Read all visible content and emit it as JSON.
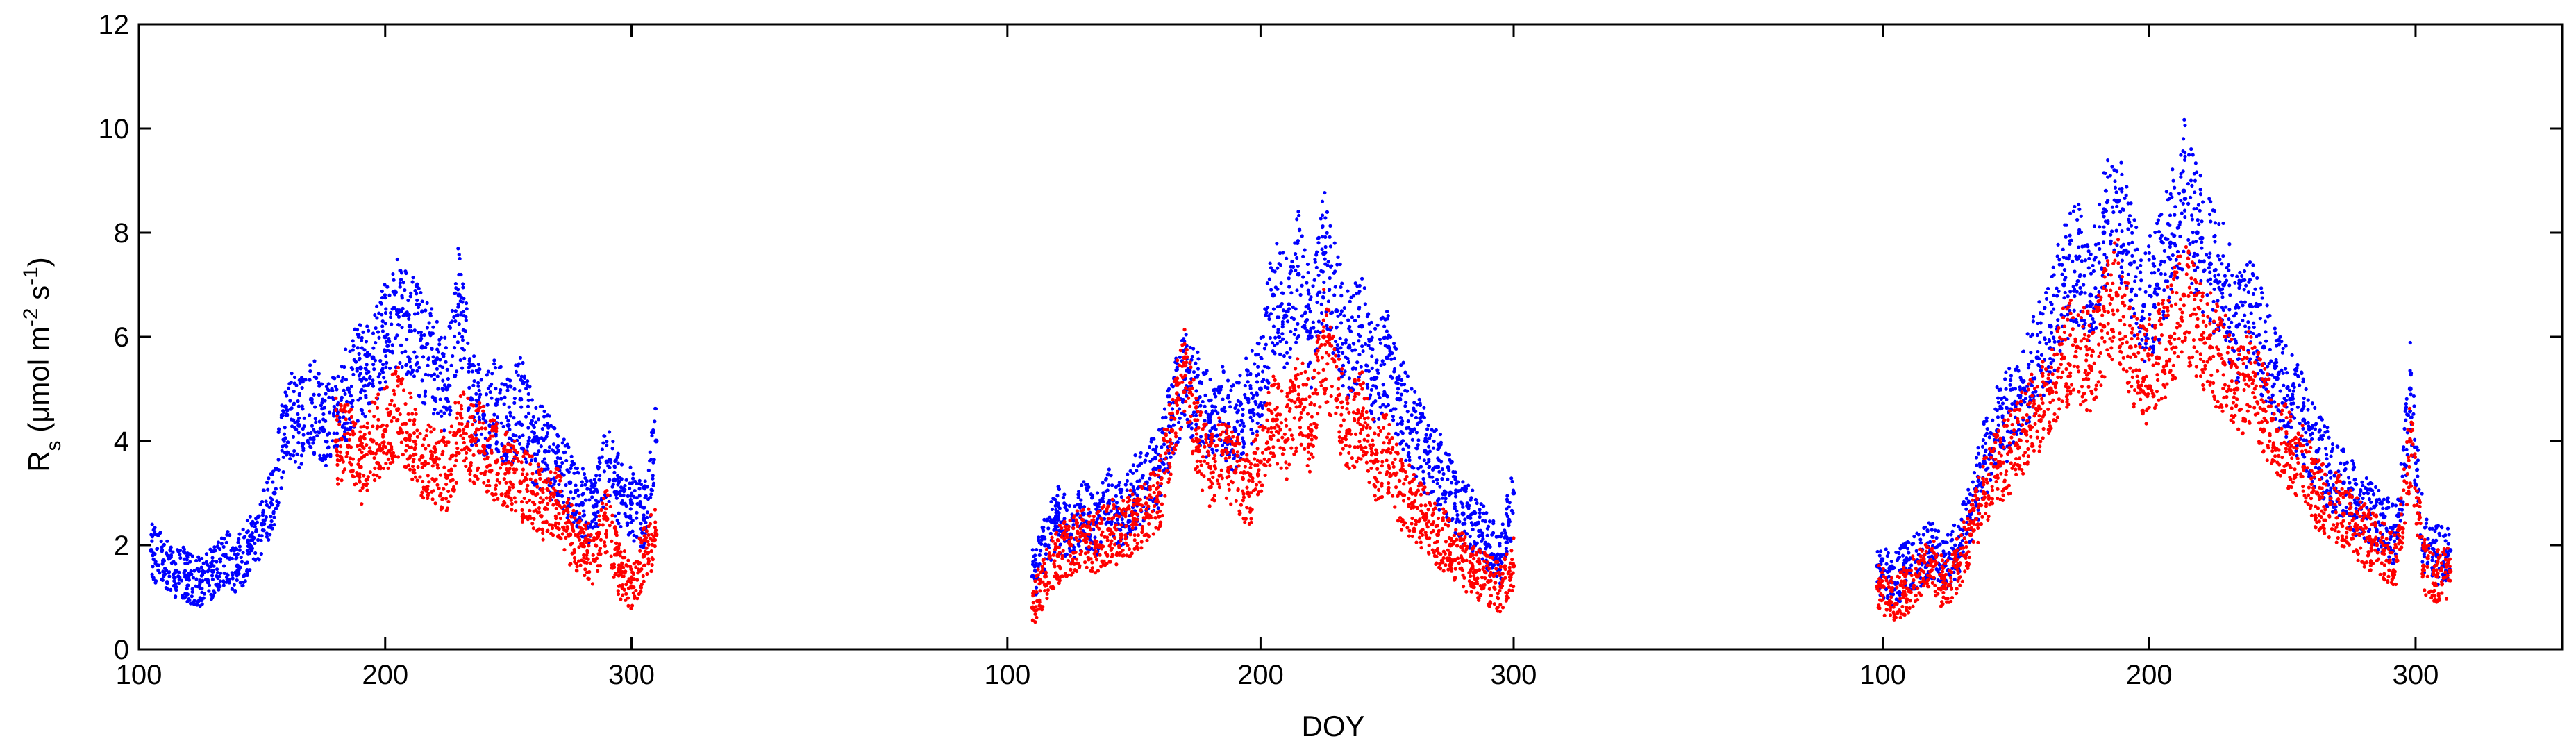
{
  "chart_data": {
    "type": "scatter",
    "xlabel": "DOY",
    "ylabel_parts": {
      "base": "R",
      "sub": "s",
      "unit_open": " (μmol m",
      "sup1": "-2",
      "mid": " s",
      "sup2": "-1",
      "unit_close": ")"
    },
    "ylim": [
      0,
      12
    ],
    "yticks": [
      0,
      2,
      4,
      6,
      8,
      10,
      12
    ],
    "grid": false,
    "legend": "none",
    "colors": {
      "series_1": "#0000ff",
      "series_2": "#ff0000"
    },
    "panels": [
      {
        "xlim": [
          100,
          310
        ],
        "xticks": [
          100,
          200,
          300
        ],
        "series": [
          {
            "color": "#0000ff",
            "x": [
              105,
              110,
              115,
              120,
              125,
              130,
              135,
              140,
              145,
              150,
              155,
              160,
              165,
              170,
              175,
              180,
              185,
              190,
              195,
              200,
              205,
              210,
              215,
              220,
              225,
              230,
              235,
              240,
              245,
              250,
              255,
              260,
              265,
              270,
              275,
              280,
              285,
              290,
              295,
              300,
              305,
              310
            ],
            "y": [
              1.9,
              1.7,
              1.5,
              1.4,
              1.3,
              1.5,
              1.8,
              1.6,
              2.0,
              2.4,
              3.0,
              4.5,
              4.3,
              4.8,
              4.2,
              4.6,
              5.0,
              5.4,
              5.6,
              6.0,
              6.5,
              6.2,
              5.8,
              5.5,
              5.0,
              6.8,
              4.8,
              4.5,
              4.7,
              4.3,
              4.8,
              4.0,
              3.8,
              3.5,
              3.2,
              2.8,
              2.6,
              3.6,
              3.0,
              2.8,
              2.5,
              4.0
            ]
          },
          {
            "color": "#ff0000",
            "x": [
              180,
              185,
              190,
              195,
              200,
              205,
              210,
              215,
              220,
              225,
              230,
              235,
              240,
              245,
              250,
              255,
              260,
              265,
              270,
              275,
              280,
              285,
              290,
              295,
              300,
              305,
              310
            ],
            "y": [
              4.0,
              3.9,
              3.5,
              4.0,
              4.2,
              4.6,
              4.1,
              3.7,
              3.6,
              3.3,
              4.2,
              4.0,
              3.9,
              3.6,
              3.4,
              3.2,
              3.0,
              2.7,
              2.8,
              2.2,
              2.0,
              1.7,
              2.5,
              1.5,
              1.2,
              1.8,
              2.2
            ]
          }
        ]
      },
      {
        "xlim": [
          108,
          300
        ],
        "xticks": [
          100,
          200,
          300
        ],
        "series": [
          {
            "color": "#0000ff",
            "x": [
              110,
              115,
              120,
              125,
              130,
              135,
              140,
              145,
              150,
              155,
              160,
              165,
              170,
              175,
              180,
              185,
              190,
              195,
              200,
              205,
              210,
              215,
              220,
              225,
              230,
              235,
              240,
              245,
              250,
              255,
              260,
              265,
              270,
              275,
              280,
              285,
              290,
              295,
              300
            ],
            "y": [
              1.4,
              2.0,
              2.5,
              2.2,
              2.6,
              2.4,
              2.8,
              2.6,
              3.0,
              3.2,
              3.5,
              4.5,
              5.2,
              4.8,
              4.4,
              4.6,
              4.2,
              4.8,
              5.0,
              6.8,
              6.4,
              7.2,
              6.0,
              7.6,
              6.5,
              5.8,
              6.2,
              5.2,
              5.6,
              4.8,
              4.2,
              3.8,
              3.5,
              3.0,
              2.6,
              2.4,
              2.0,
              1.8,
              3.0
            ]
          },
          {
            "color": "#ff0000",
            "x": [
              110,
              115,
              120,
              125,
              130,
              135,
              140,
              145,
              150,
              155,
              160,
              165,
              170,
              175,
              180,
              185,
              190,
              195,
              200,
              205,
              210,
              215,
              220,
              225,
              230,
              235,
              240,
              245,
              250,
              255,
              260,
              265,
              270,
              275,
              280,
              285,
              290,
              295,
              300
            ],
            "y": [
              0.8,
              1.4,
              1.8,
              2.0,
              2.2,
              2.0,
              2.3,
              2.2,
              2.5,
              2.6,
              3.0,
              4.2,
              5.6,
              4.0,
              3.5,
              3.8,
              3.4,
              3.0,
              3.6,
              4.4,
              4.0,
              4.8,
              4.2,
              6.0,
              4.8,
              4.2,
              4.5,
              3.6,
              3.8,
              3.0,
              2.8,
              2.5,
              2.2,
              2.0,
              1.7,
              1.5,
              1.3,
              1.2,
              1.6
            ]
          }
        ]
      },
      {
        "xlim": [
          97,
          355
        ],
        "xticks": [
          100,
          200,
          300
        ],
        "series": [
          {
            "color": "#0000ff",
            "x": [
              98,
              103,
              108,
              113,
              118,
              123,
              128,
              133,
              138,
              143,
              148,
              153,
              158,
              163,
              168,
              173,
              178,
              183,
              188,
              193,
              198,
              203,
              208,
              213,
              218,
              223,
              228,
              233,
              238,
              243,
              248,
              253,
              258,
              263,
              268,
              273,
              278,
              283,
              288,
              293,
              298,
              303,
              308,
              313
            ],
            "y": [
              1.6,
              1.3,
              1.5,
              1.7,
              1.9,
              1.6,
              1.9,
              2.6,
              3.6,
              4.2,
              4.6,
              5.0,
              5.6,
              6.2,
              7.0,
              7.5,
              6.8,
              8.0,
              8.6,
              7.4,
              6.6,
              7.0,
              7.8,
              8.8,
              8.0,
              7.4,
              7.0,
              6.2,
              6.6,
              5.8,
              5.2,
              4.8,
              4.4,
              3.8,
              3.4,
              3.2,
              2.8,
              2.6,
              2.4,
              2.2,
              5.0,
              2.0,
              1.8,
              1.9
            ]
          },
          {
            "color": "#ff0000",
            "x": [
              98,
              103,
              108,
              113,
              118,
              123,
              128,
              133,
              138,
              143,
              148,
              153,
              158,
              163,
              168,
              173,
              178,
              183,
              188,
              193,
              198,
              203,
              208,
              213,
              218,
              223,
              228,
              233,
              238,
              243,
              248,
              253,
              258,
              263,
              268,
              273,
              278,
              283,
              288,
              293,
              298,
              303,
              308,
              313
            ],
            "y": [
              1.2,
              0.9,
              1.1,
              1.4,
              1.7,
              1.2,
              1.6,
              2.2,
              3.0,
              3.5,
              3.8,
              4.2,
              4.6,
              5.0,
              5.6,
              5.8,
              5.4,
              6.2,
              6.8,
              5.8,
              5.2,
              5.6,
              6.0,
              6.8,
              6.2,
              5.8,
              5.5,
              5.0,
              5.2,
              4.6,
              4.2,
              3.8,
              3.5,
              3.0,
              2.8,
              2.6,
              2.3,
              2.1,
              1.9,
              1.7,
              4.0,
              1.6,
              1.4,
              1.5
            ]
          }
        ]
      }
    ]
  }
}
